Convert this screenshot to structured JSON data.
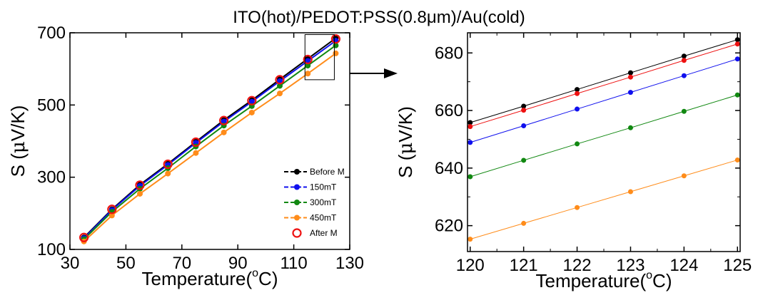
{
  "title": "ITO(hot)/PEDOT:PSS(0.8μm)/Au(cold)",
  "chart_data": [
    {
      "type": "line",
      "xlabel_main": "Temperature(",
      "xlabel_sup": "o",
      "xlabel_end": "C)",
      "ylabel_prefix": "S (",
      "ylabel_mu": "μ",
      "ylabel_suffix": "V/K)",
      "xlim": [
        30,
        130
      ],
      "ylim": [
        100,
        700
      ],
      "xticks": [
        30,
        50,
        70,
        90,
        110,
        130
      ],
      "yticks": [
        100,
        300,
        500,
        700
      ],
      "x": [
        35,
        45,
        55,
        65,
        75,
        85,
        95,
        105,
        115,
        125
      ],
      "series": [
        {
          "name": "Before M",
          "color": "#000000",
          "marker": "filled",
          "values": [
            133,
            211,
            279,
            337,
            398,
            458,
            513,
            571,
            628,
            685
          ]
        },
        {
          "name": "150mT",
          "color": "#1010ee",
          "marker": "filled",
          "values": [
            131,
            209,
            276,
            334,
            395,
            454,
            509,
            566,
            622,
            678
          ]
        },
        {
          "name": "300mT",
          "color": "#118811",
          "marker": "filled",
          "values": [
            128,
            204,
            268,
            325,
            385,
            443,
            497,
            553,
            609,
            665
          ]
        },
        {
          "name": "450mT",
          "color": "#ff8c1a",
          "marker": "filled",
          "values": [
            122,
            194,
            254,
            310,
            367,
            424,
            479,
            532,
            587,
            643
          ]
        },
        {
          "name": "After M",
          "color": "#ee1111",
          "marker": "open",
          "values": [
            133,
            211,
            278,
            336,
            397,
            457,
            512,
            570,
            626,
            683
          ]
        }
      ],
      "legend_position": "lower-right",
      "inset_box": {
        "x": [
          114,
          124.5
        ],
        "y": [
          570,
          695
        ]
      }
    },
    {
      "type": "line",
      "xlabel_main": "Temperature(",
      "xlabel_sup": "o",
      "xlabel_end": "C)",
      "ylabel_prefix": "S (",
      "ylabel_mu": "μ",
      "ylabel_suffix": "V/K)",
      "xlim": [
        119.95,
        125.05
      ],
      "ylim": [
        611,
        687
      ],
      "xticks": [
        120,
        121,
        122,
        123,
        124,
        125
      ],
      "yticks": [
        620,
        640,
        660,
        680
      ],
      "x": [
        120,
        121,
        122,
        123,
        124,
        125
      ],
      "series": [
        {
          "name": "Before M",
          "color": "#000000",
          "values": [
            655.8,
            661.5,
            667.3,
            673.1,
            678.9,
            684.6
          ]
        },
        {
          "name": "After M",
          "color": "#ee1111",
          "values": [
            654.4,
            660.1,
            665.9,
            671.6,
            677.4,
            683.1
          ]
        },
        {
          "name": "150mT",
          "color": "#1010ee",
          "values": [
            648.9,
            654.7,
            660.5,
            666.3,
            672.1,
            677.9
          ]
        },
        {
          "name": "300mT",
          "color": "#118811",
          "values": [
            637.0,
            642.7,
            648.4,
            654.0,
            659.7,
            665.4
          ]
        },
        {
          "name": "450mT",
          "color": "#ff8c1a",
          "values": [
            615.3,
            620.8,
            626.3,
            631.8,
            637.3,
            642.8
          ]
        }
      ]
    }
  ]
}
